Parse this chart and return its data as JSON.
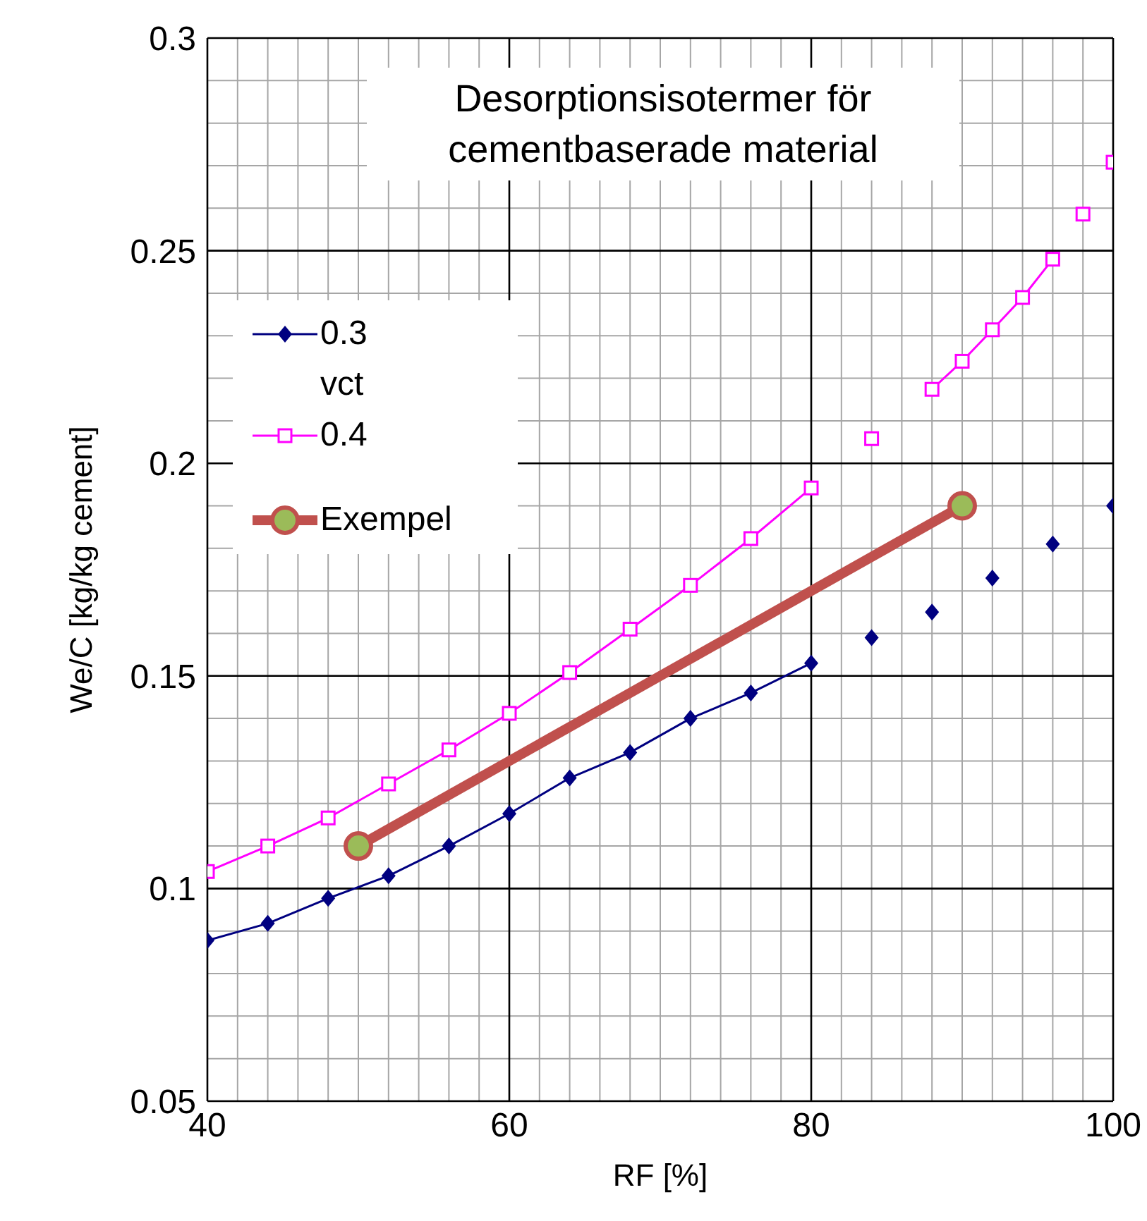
{
  "chart_data": {
    "type": "line",
    "title": "Desorptionsisotermer för cementbaserade material",
    "xlabel": "RF [%]",
    "ylabel": "We/C [kg/kg cement]",
    "legend_title": "vct",
    "legend": "top left",
    "grid": true,
    "xlim": [
      40,
      100
    ],
    "xticks": [
      40,
      {
        "value": 42,
        "label": null
      },
      {
        "value": 44,
        "label": null
      },
      {
        "value": 46,
        "label": null
      },
      {
        "value": 48,
        "label": null
      },
      {
        "value": 50,
        "label": null
      },
      {
        "value": 52,
        "label": null
      },
      {
        "value": 54,
        "label": null
      },
      {
        "value": 56,
        "label": null
      },
      {
        "value": 58,
        "label": null
      },
      60,
      {
        "value": 62,
        "label": null
      },
      {
        "value": 64,
        "label": null
      },
      {
        "value": 66,
        "label": null
      },
      {
        "value": 68,
        "label": null
      },
      {
        "value": 70,
        "label": null
      },
      {
        "value": 72,
        "label": null
      },
      {
        "value": 74,
        "label": null
      },
      {
        "value": 76,
        "label": null
      },
      {
        "value": 78,
        "label": null
      },
      80,
      {
        "value": 82,
        "label": null
      },
      {
        "value": 84,
        "label": null
      },
      {
        "value": 86,
        "label": null
      },
      {
        "value": 88,
        "label": null
      },
      {
        "value": 90,
        "label": null
      },
      {
        "value": 92,
        "label": null
      },
      {
        "value": 94,
        "label": null
      },
      {
        "value": 96,
        "label": null
      },
      {
        "value": 98,
        "label": null
      },
      100
    ],
    "ylim": [
      0.05,
      0.3
    ],
    "yticks": [
      0.05,
      {
        "value": 0.06,
        "label": null
      },
      {
        "value": 0.07,
        "label": null
      },
      {
        "value": 0.08,
        "label": null
      },
      {
        "value": 0.09,
        "label": null
      },
      0.1,
      {
        "value": 0.11,
        "label": null
      },
      {
        "value": 0.12,
        "label": null
      },
      {
        "value": 0.13,
        "label": null
      },
      {
        "value": 0.14,
        "label": null
      },
      0.15,
      {
        "value": 0.16,
        "label": null
      },
      {
        "value": 0.17,
        "label": null
      },
      {
        "value": 0.18,
        "label": null
      },
      {
        "value": 0.19,
        "label": null
      },
      0.2,
      {
        "value": 0.21,
        "label": null
      },
      {
        "value": 0.22,
        "label": null
      },
      {
        "value": 0.23,
        "label": null
      },
      {
        "value": 0.24,
        "label": null
      },
      0.25,
      {
        "value": 0.26,
        "label": null
      },
      {
        "value": 0.27,
        "label": null
      },
      {
        "value": 0.28,
        "label": null
      },
      {
        "value": 0.29,
        "label": null
      },
      0.3
    ],
    "series": [
      {
        "name": "0.3",
        "color": "#000080",
        "marker": "diamond",
        "x": [
          40,
          44,
          48,
          52,
          56,
          60,
          64,
          68,
          72,
          76,
          80,
          82,
          84,
          86,
          88,
          90,
          92,
          94,
          96,
          98,
          100
        ],
        "values": [
          0.0878,
          0.0918,
          0.0977,
          0.103,
          0.11,
          0.1176,
          0.126,
          0.132,
          0.14,
          0.146,
          0.153,
          null,
          0.159,
          null,
          0.165,
          null,
          0.173,
          null,
          0.181,
          null,
          0.19
        ]
      },
      {
        "name": "0.4",
        "color": "#ff00ff",
        "marker": "square",
        "x": [
          40,
          44,
          48,
          52,
          56,
          60,
          64,
          68,
          72,
          76,
          80,
          82,
          84,
          86,
          88,
          90,
          92,
          94,
          96,
          97,
          98,
          99,
          100
        ],
        "values": [
          0.104,
          0.11,
          0.1166,
          0.1246,
          0.1326,
          0.1412,
          0.1508,
          0.161,
          0.1713,
          0.1823,
          0.1942,
          null,
          0.2058,
          null,
          0.2174,
          0.224,
          0.2314,
          0.239,
          0.248,
          null,
          0.2586,
          null,
          0.2708
        ]
      },
      {
        "name": "Exempel",
        "color": "#c0504d",
        "marker": "circle",
        "x": [
          50,
          90
        ],
        "values": [
          0.11,
          0.19
        ]
      }
    ]
  }
}
